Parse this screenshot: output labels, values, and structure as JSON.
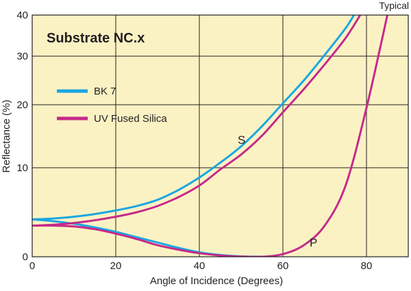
{
  "chart_data": {
    "type": "line",
    "title": "Substrate NC.x",
    "corner_label": "Typical",
    "xlabel": "Angle of Incidence (Degrees)",
    "ylabel": "Reflectance (%)",
    "xlim": [
      0,
      90
    ],
    "ylim": [
      0,
      40
    ],
    "x_ticks": [
      0,
      20,
      40,
      60,
      80
    ],
    "x_tick_labels": [
      "0",
      "20",
      "40",
      "60",
      "80"
    ],
    "y_ticks": [
      0,
      10,
      20,
      30,
      40
    ],
    "y_tick_labels": [
      "0",
      "10",
      "20",
      "30",
      "40"
    ],
    "y_scale": "nonlinear (sqrt-like, as printed)",
    "grid": true,
    "legend_placement": "upper-left",
    "background_color": "#fbf2c4",
    "grid_color": "#231f20",
    "series": [
      {
        "name": "BK 7",
        "color": "#1aa7e1",
        "segments": [
          {
            "label": "S",
            "x": [
              0,
              5,
              10,
              15,
              20,
              25,
              30,
              35,
              40,
              45,
              50,
              55,
              60,
              65,
              70,
              75,
              77
            ],
            "y": [
              4.2,
              4.3,
              4.5,
              4.8,
              5.2,
              5.7,
              6.4,
              7.5,
              8.9,
              10.8,
              13.4,
              16.6,
              20.3,
              25.0,
              30.3,
              36.8,
              40
            ]
          },
          {
            "label": "P",
            "x": [
              0,
              5,
              10,
              15,
              20,
              25,
              30,
              35,
              40,
              45,
              50,
              55,
              57
            ],
            "y": [
              4.2,
              4.0,
              3.7,
              3.3,
              2.8,
              2.2,
              1.6,
              1.0,
              0.5,
              0.2,
              0.04,
              0.0,
              0.0
            ]
          }
        ]
      },
      {
        "name": "UV Fused Silica",
        "color": "#c52a8a",
        "segments": [
          {
            "label": "S",
            "x": [
              0,
              5,
              10,
              15,
              20,
              25,
              30,
              35,
              40,
              45,
              50,
              55,
              60,
              65,
              70,
              75,
              78.5
            ],
            "y": [
              3.5,
              3.6,
              3.8,
              4.1,
              4.5,
              5.0,
              5.7,
              6.7,
              8.0,
              9.8,
              12.1,
              15.1,
              18.8,
              23.2,
              28.3,
              34.4,
              40
            ]
          },
          {
            "label": "P",
            "x": [
              0,
              5,
              10,
              15,
              20,
              25,
              30,
              35,
              40,
              45,
              50,
              55,
              60,
              65,
              70,
              75,
              80,
              85
            ],
            "y": [
              3.5,
              3.5,
              3.4,
              3.1,
              2.6,
              2.0,
              1.3,
              0.8,
              0.4,
              0.15,
              0.02,
              0.0,
              0.3,
              1.3,
              3.5,
              8.0,
              19.5,
              40
            ]
          }
        ]
      }
    ],
    "annotations": [
      {
        "text": "S",
        "x": 51,
        "y": 15.5
      },
      {
        "text": "P",
        "x": 68,
        "y": 2.0
      }
    ]
  }
}
